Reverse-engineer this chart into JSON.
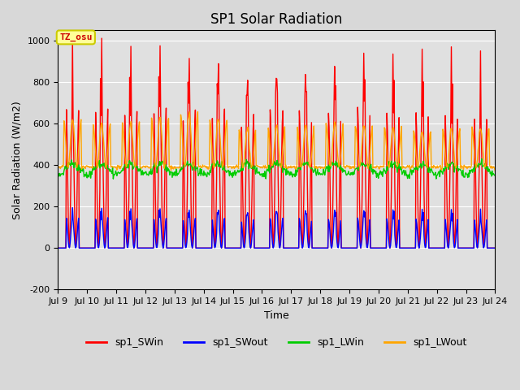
{
  "title": "SP1 Solar Radiation",
  "xlabel": "Time",
  "ylabel": "Solar Radiation (W/m2)",
  "ylim": [
    -200,
    1050
  ],
  "yticks": [
    -200,
    0,
    200,
    400,
    600,
    800,
    1000
  ],
  "xtick_labels": [
    "Jul 9",
    "Jul 10",
    "Jul 11",
    "Jul 12",
    "Jul 13",
    "Jul 14",
    "Jul 15",
    "Jul 16",
    "Jul 17",
    "Jul 18",
    "Jul 19",
    "Jul 20",
    "Jul 21",
    "Jul 22",
    "Jul 23",
    "Jul 24"
  ],
  "legend_labels": [
    "sp1_SWin",
    "sp1_SWout",
    "sp1_LWin",
    "sp1_LWout"
  ],
  "legend_colors": [
    "#ff0000",
    "#0000ff",
    "#00cc00",
    "#ffa500"
  ],
  "annotation_text": "TZ_osu",
  "annotation_color": "#cc0000",
  "annotation_bg": "#ffff99",
  "annotation_border": "#cccc00",
  "background_color": "#e0e0e0",
  "grid_color": "#ffffff",
  "title_fontsize": 12,
  "axis_fontsize": 9,
  "legend_fontsize": 9,
  "sw_in_peaks": [
    975,
    970,
    960,
    970,
    950,
    960,
    910,
    960,
    940,
    940,
    970,
    940,
    940,
    930,
    910
  ],
  "lw_out_peaks": [
    620,
    600,
    610,
    630,
    650,
    620,
    580,
    590,
    590,
    600,
    590,
    580,
    565,
    580,
    580
  ],
  "lw_in_base": 355,
  "lw_in_amp": 50,
  "sw_out_ratio": 0.215
}
